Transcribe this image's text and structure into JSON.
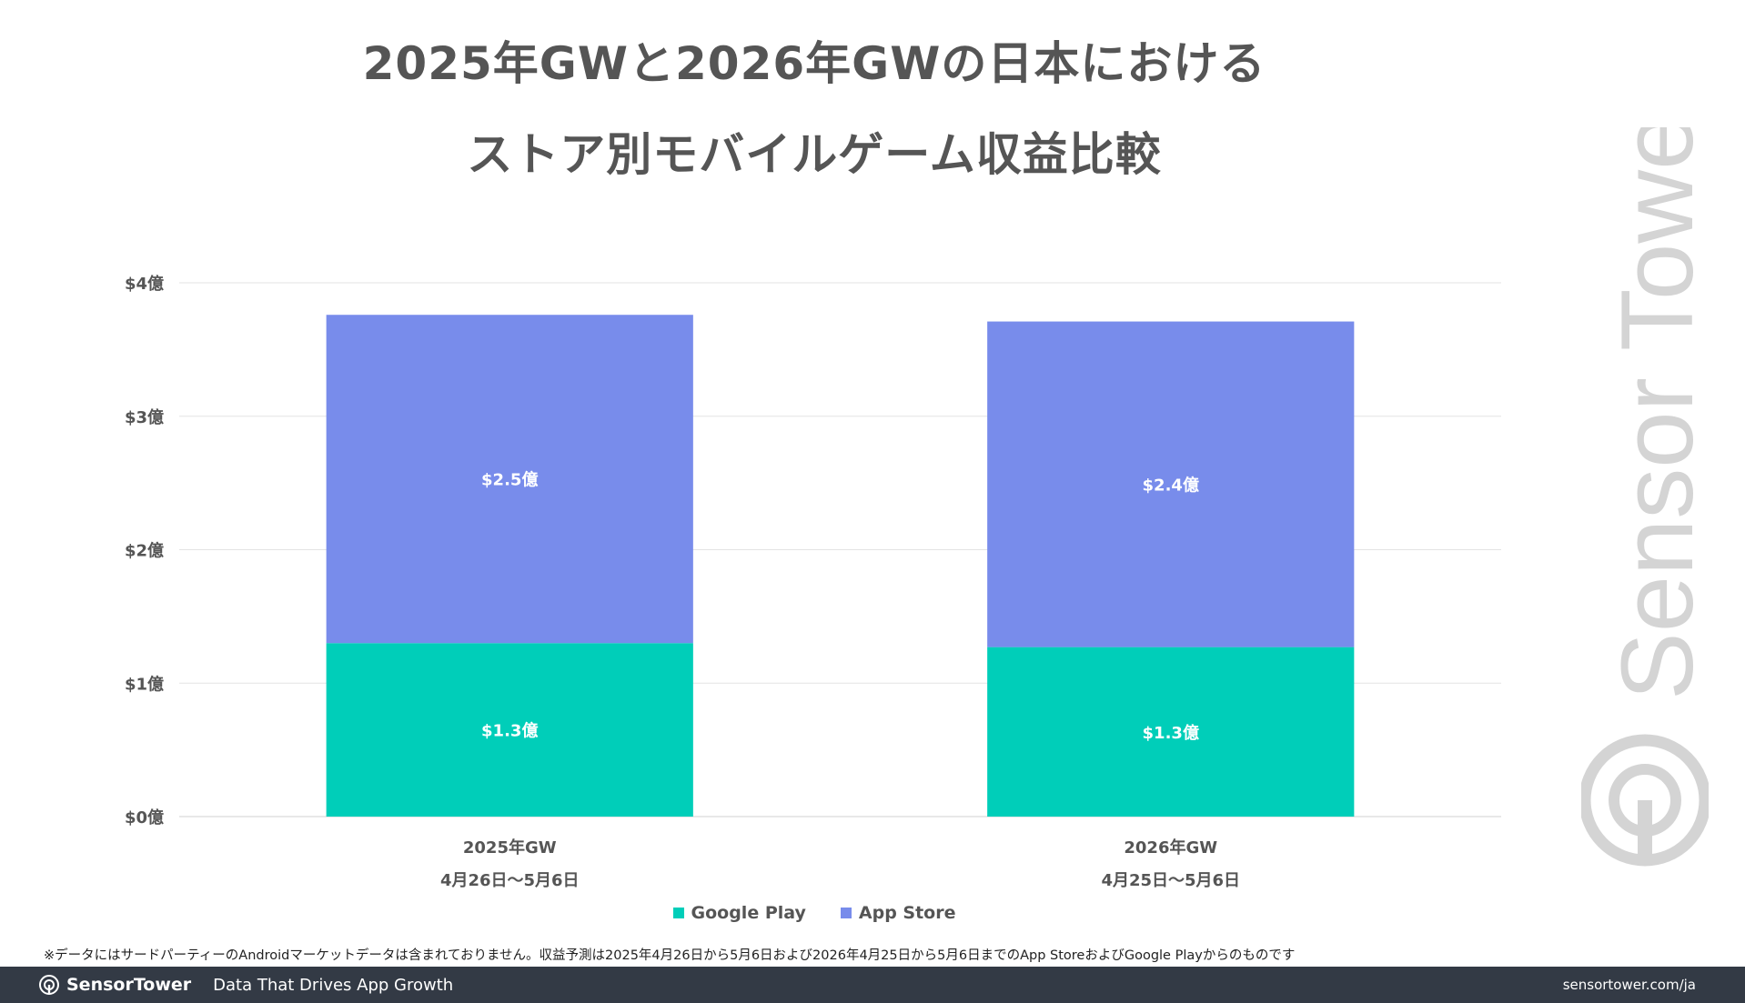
{
  "title_line1": "2025年GWと2026年GWの日本における",
  "title_line2": "ストア別モバイルゲーム収益比較",
  "chart_data": {
    "type": "bar",
    "stacked": true,
    "categories": [
      "2025年GW",
      "2026年GW"
    ],
    "category_sublabels": [
      "4月26日～5月6日",
      "4月25日～5月6日"
    ],
    "series": [
      {
        "name": "Google Play",
        "color": "#00ceb9",
        "values": [
          1.3,
          1.27
        ],
        "data_labels": [
          "$1.3億",
          "$1.3億"
        ]
      },
      {
        "name": "App Store",
        "color": "#788ceb",
        "values": [
          2.46,
          2.44
        ],
        "data_labels": [
          "$2.5億",
          "$2.4億"
        ]
      }
    ],
    "yticks": [
      0,
      1,
      2,
      3,
      4
    ],
    "ytick_labels": [
      "$0億",
      "$1億",
      "$2億",
      "$3億",
      "$4億"
    ],
    "ylim": [
      0,
      4
    ],
    "grid": true,
    "legend_position": "bottom"
  },
  "footnote": "※データにはサードパーティーのAndroidマーケットデータは含まれておりません。収益予測は2025年4月26日から5月6日および2026年4月25日から5月6日までのApp StoreおよびGoogle Playからのものです",
  "footer": {
    "brand": "SensorTower",
    "tagline": "Data That Drives App Growth",
    "url": "sensortower.com/ja"
  },
  "watermark": "Sensor Tower"
}
